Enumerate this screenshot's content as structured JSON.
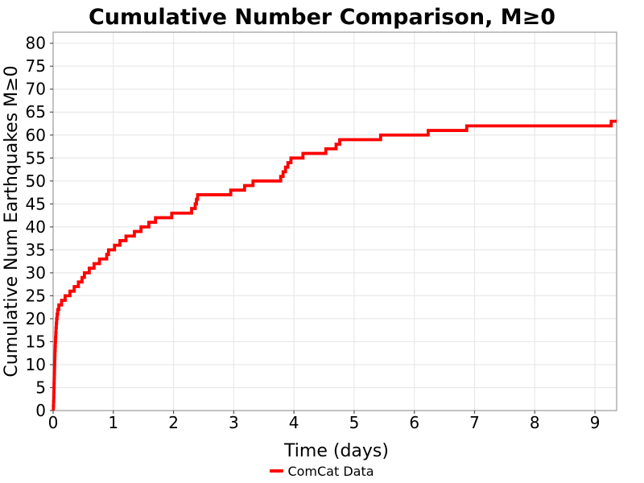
{
  "colors": {
    "line": "#ff0000",
    "grid": "#e8e8e8",
    "panel_border": "#a3a3a3",
    "tick": "#555555",
    "text": "#000000",
    "background": "#ffffff"
  },
  "chart_data": {
    "type": "line",
    "step_style": "step-after",
    "title": "Cumulative Number Comparison, M≥0",
    "xlabel": "Time (days)",
    "ylabel": "Cumulative Num Earthquakes M≥0",
    "xlim": [
      0,
      9.36
    ],
    "ylim": [
      0,
      82.4
    ],
    "xticks": [
      0,
      1,
      2,
      3,
      4,
      5,
      6,
      7,
      8,
      9
    ],
    "yticks": [
      0,
      5,
      10,
      15,
      20,
      25,
      30,
      35,
      40,
      45,
      50,
      55,
      60,
      65,
      70,
      75,
      80
    ],
    "grid": true,
    "legend_position": "bottom-center",
    "series": [
      {
        "name": "ComCat Data",
        "color": "#ff0000",
        "start": [
          0.004,
          0
        ],
        "end_x": 9.36,
        "points": [
          [
            0.004,
            1
          ],
          [
            0.007,
            2
          ],
          [
            0.01,
            3
          ],
          [
            0.012,
            4
          ],
          [
            0.014,
            5
          ],
          [
            0.016,
            6
          ],
          [
            0.018,
            7
          ],
          [
            0.02,
            8
          ],
          [
            0.022,
            9
          ],
          [
            0.024,
            10
          ],
          [
            0.026,
            11
          ],
          [
            0.028,
            12
          ],
          [
            0.031,
            13
          ],
          [
            0.034,
            14
          ],
          [
            0.037,
            15
          ],
          [
            0.04,
            16
          ],
          [
            0.044,
            17
          ],
          [
            0.048,
            18
          ],
          [
            0.053,
            19
          ],
          [
            0.058,
            20
          ],
          [
            0.066,
            21
          ],
          [
            0.076,
            22
          ],
          [
            0.095,
            23
          ],
          [
            0.14,
            24
          ],
          [
            0.2,
            25
          ],
          [
            0.28,
            26
          ],
          [
            0.35,
            27
          ],
          [
            0.42,
            28
          ],
          [
            0.48,
            29
          ],
          [
            0.52,
            30
          ],
          [
            0.6,
            31
          ],
          [
            0.68,
            32
          ],
          [
            0.77,
            33
          ],
          [
            0.89,
            34
          ],
          [
            0.92,
            35
          ],
          [
            1.02,
            36
          ],
          [
            1.11,
            37
          ],
          [
            1.21,
            38
          ],
          [
            1.35,
            39
          ],
          [
            1.46,
            40
          ],
          [
            1.59,
            41
          ],
          [
            1.7,
            42
          ],
          [
            1.97,
            43
          ],
          [
            2.3,
            44
          ],
          [
            2.36,
            45
          ],
          [
            2.38,
            46
          ],
          [
            2.4,
            47
          ],
          [
            2.95,
            48
          ],
          [
            3.18,
            49
          ],
          [
            3.32,
            50
          ],
          [
            3.78,
            51
          ],
          [
            3.82,
            52
          ],
          [
            3.86,
            53
          ],
          [
            3.9,
            54
          ],
          [
            3.95,
            55
          ],
          [
            4.15,
            56
          ],
          [
            4.53,
            57
          ],
          [
            4.7,
            58
          ],
          [
            4.76,
            59
          ],
          [
            5.44,
            60
          ],
          [
            6.23,
            61
          ],
          [
            6.87,
            62
          ],
          [
            9.27,
            63
          ]
        ]
      }
    ]
  }
}
